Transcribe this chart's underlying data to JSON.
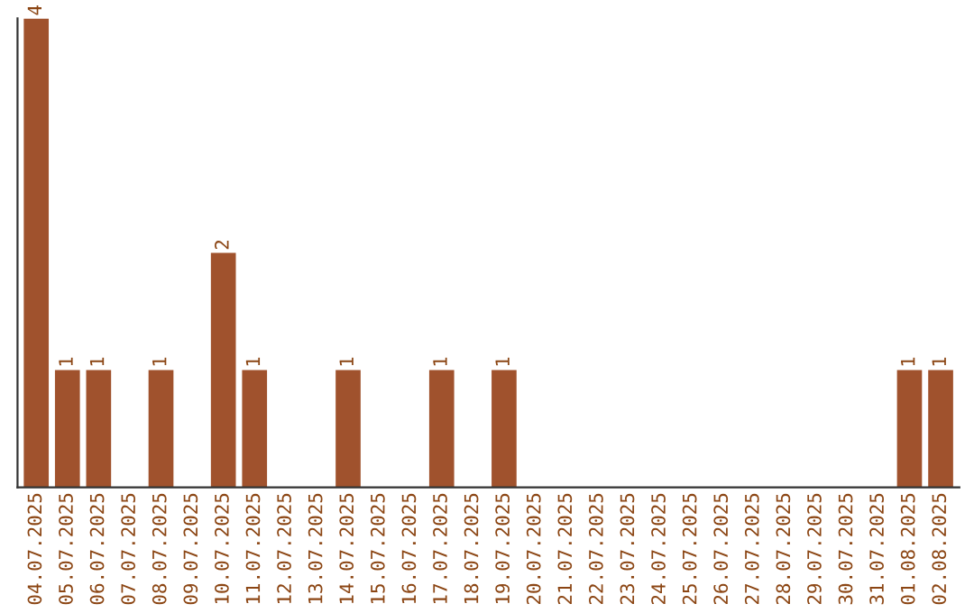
{
  "chart_data": {
    "type": "bar",
    "categories": [
      "04.07.2025",
      "05.07.2025",
      "06.07.2025",
      "07.07.2025",
      "08.07.2025",
      "09.07.2025",
      "10.07.2025",
      "11.07.2025",
      "12.07.2025",
      "13.07.2025",
      "14.07.2025",
      "15.07.2025",
      "16.07.2025",
      "17.07.2025",
      "18.07.2025",
      "19.07.2025",
      "20.07.2025",
      "21.07.2025",
      "22.07.2025",
      "23.07.2025",
      "24.07.2025",
      "25.07.2025",
      "26.07.2025",
      "27.07.2025",
      "28.07.2025",
      "29.07.2025",
      "30.07.2025",
      "31.07.2025",
      "01.08.2025",
      "02.08.2025"
    ],
    "values": [
      4,
      1,
      1,
      0,
      1,
      0,
      2,
      1,
      0,
      0,
      1,
      0,
      0,
      1,
      0,
      1,
      0,
      0,
      0,
      0,
      0,
      0,
      0,
      0,
      0,
      0,
      0,
      0,
      1,
      1
    ],
    "value_labels": [
      "4",
      "1",
      "1",
      null,
      "1",
      null,
      "2",
      "1",
      null,
      null,
      "1",
      null,
      null,
      "1",
      null,
      "1",
      null,
      null,
      null,
      null,
      null,
      null,
      null,
      null,
      null,
      null,
      null,
      null,
      "1",
      "1"
    ],
    "color": "#a0522d",
    "ylim": [
      0,
      4
    ],
    "tick_labels": "x",
    "grid": false,
    "legend": false
  }
}
